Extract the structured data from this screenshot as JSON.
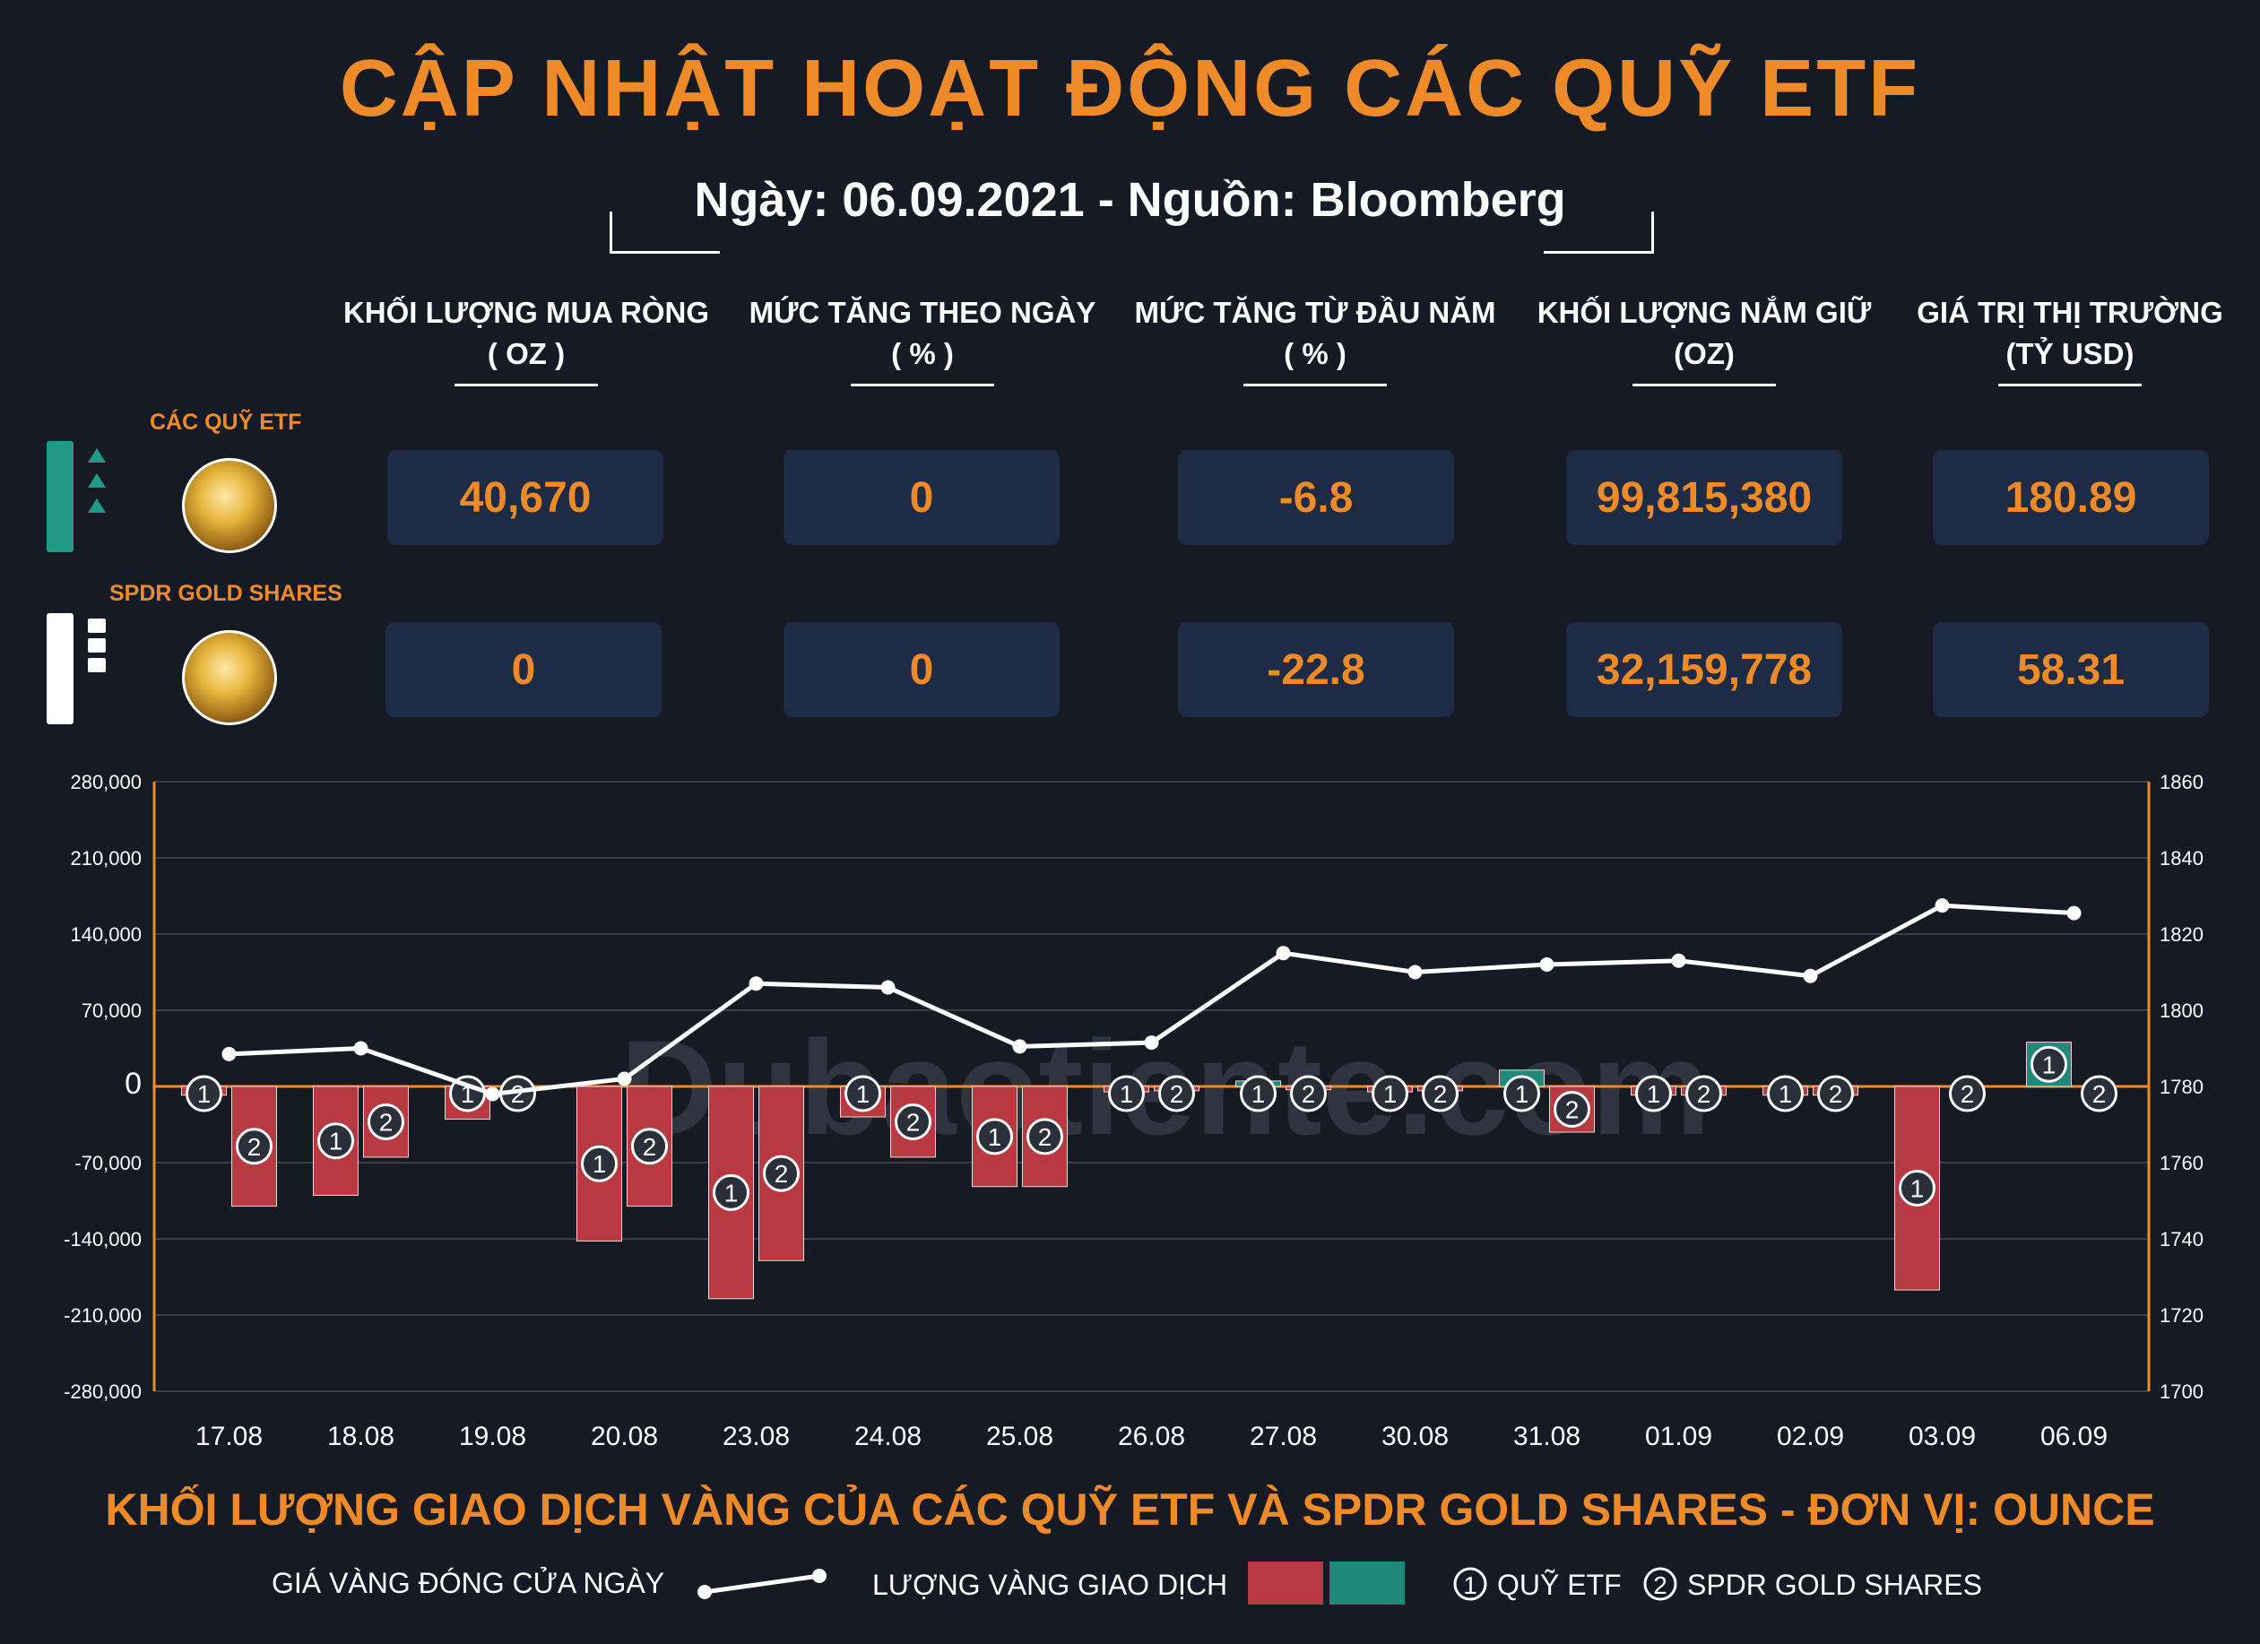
{
  "header": {
    "title": "CẬP NHẬT HOẠT ĐỘNG CÁC QUỸ ETF",
    "subtitle": "Ngày: 06.09.2021 - Nguồn: Bloomberg"
  },
  "columns": [
    {
      "line1": "KHỐI LƯỢNG MUA RÒNG",
      "line2": "( OZ )"
    },
    {
      "line1": "MỨC TĂNG THEO NGÀY",
      "line2": "( % )"
    },
    {
      "line1": "MỨC TĂNG TỪ ĐẦU NĂM",
      "line2": "( % )"
    },
    {
      "line1": "KHỐI LƯỢNG NẮM GIỮ",
      "line2": "(OZ)"
    },
    {
      "line1": "GIÁ TRỊ THỊ TRƯỜNG",
      "line2": "(TỶ USD)"
    }
  ],
  "rows": [
    {
      "label": "CÁC QUỸ ETF",
      "values": [
        "40,670",
        "0",
        "-6.8",
        "99,815,380",
        "180.89"
      ]
    },
    {
      "label": "SPDR GOLD SHARES",
      "values": [
        "0",
        "0",
        "-22.8",
        "32,159,778",
        "58.31"
      ]
    }
  ],
  "colors": {
    "accent": "#ee8a28",
    "negative_bar": "#b8393f",
    "positive_bar": "#1f8a7a",
    "card_bg": "#1d2b44",
    "background": "#161a25"
  },
  "chart_data": {
    "type": "bar",
    "categories": [
      "17.08",
      "18.08",
      "19.08",
      "20.08",
      "23.08",
      "24.08",
      "25.08",
      "26.08",
      "27.08",
      "30.08",
      "31.08",
      "01.09",
      "02.09",
      "03.09",
      "06.09"
    ],
    "series": [
      {
        "name": "QUỸ ETF",
        "marker": "1",
        "values": [
          -8000,
          -100000,
          -30000,
          -142000,
          -195000,
          -28000,
          -92000,
          -5000,
          5000,
          -5000,
          15000,
          -8000,
          -8000,
          -187000,
          40670
        ]
      },
      {
        "name": "SPDR GOLD SHARES",
        "marker": "2",
        "values": [
          -110000,
          -65000,
          0,
          -110000,
          -160000,
          -65000,
          -92000,
          -4000,
          -3000,
          -4000,
          -42000,
          -8000,
          -8000,
          0,
          0
        ]
      }
    ],
    "line": {
      "name": "GIÁ VÀNG ĐÓNG CỬA NGÀY",
      "values": [
        1788.5,
        1790,
        1778,
        1782,
        1807,
        1806,
        1790.5,
        1791.5,
        1815,
        1810,
        1812,
        1813,
        1809,
        1827.5,
        1825.5
      ]
    },
    "y_left": {
      "min": -280000,
      "max": 280000,
      "ticks": [
        "280,000",
        "210,000",
        "140,000",
        "70,000",
        "0",
        "-70,000",
        "-140,000",
        "-210,000",
        "-280,000"
      ]
    },
    "y_right": {
      "min": 1700,
      "max": 1860,
      "ticks": [
        "1860",
        "1840",
        "1820",
        "1800",
        "1780",
        "1760",
        "1740",
        "1720",
        "1700"
      ]
    },
    "title": "KHỐI LƯỢNG GIAO DỊCH VÀNG CỦA CÁC QUỸ ETF VÀ SPDR GOLD SHARES - ĐƠN VỊ: OUNCE"
  },
  "legend": {
    "line_label": "GIÁ VÀNG ĐÓNG CỬA NGÀY",
    "bar_label": "LƯỢNG VÀNG GIAO DỊCH",
    "marker1_label": "QUỸ ETF",
    "marker2_label": "SPDR GOLD SHARES"
  },
  "watermark": "Dubaotiente.com"
}
